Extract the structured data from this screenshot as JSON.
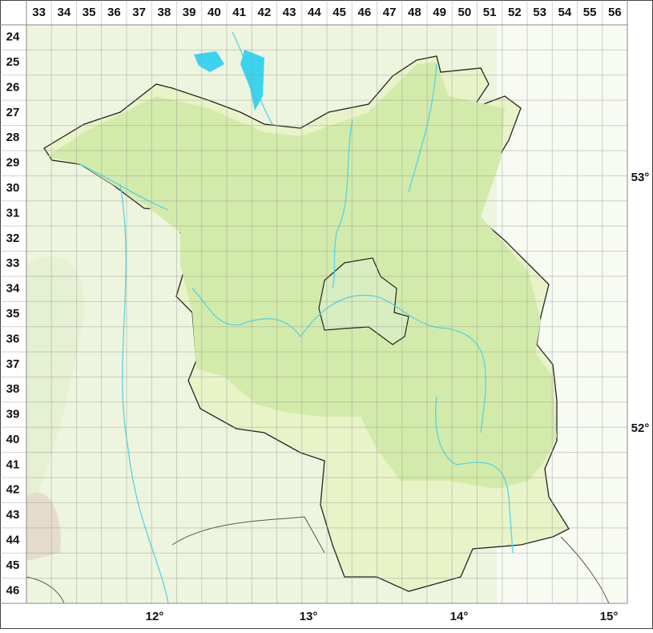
{
  "columns": [
    33,
    34,
    35,
    36,
    37,
    38,
    39,
    40,
    41,
    42,
    43,
    44,
    45,
    46,
    47,
    48,
    49,
    50,
    51,
    52,
    53,
    54,
    55,
    56
  ],
  "rows": [
    24,
    25,
    26,
    27,
    28,
    29,
    30,
    31,
    32,
    33,
    34,
    35,
    36,
    37,
    38,
    39,
    40,
    41,
    42,
    43,
    44,
    45,
    46
  ],
  "latitudes": [
    "53°",
    "52°"
  ],
  "longitudes": [
    "12°",
    "13°",
    "14°",
    "15°"
  ]
}
